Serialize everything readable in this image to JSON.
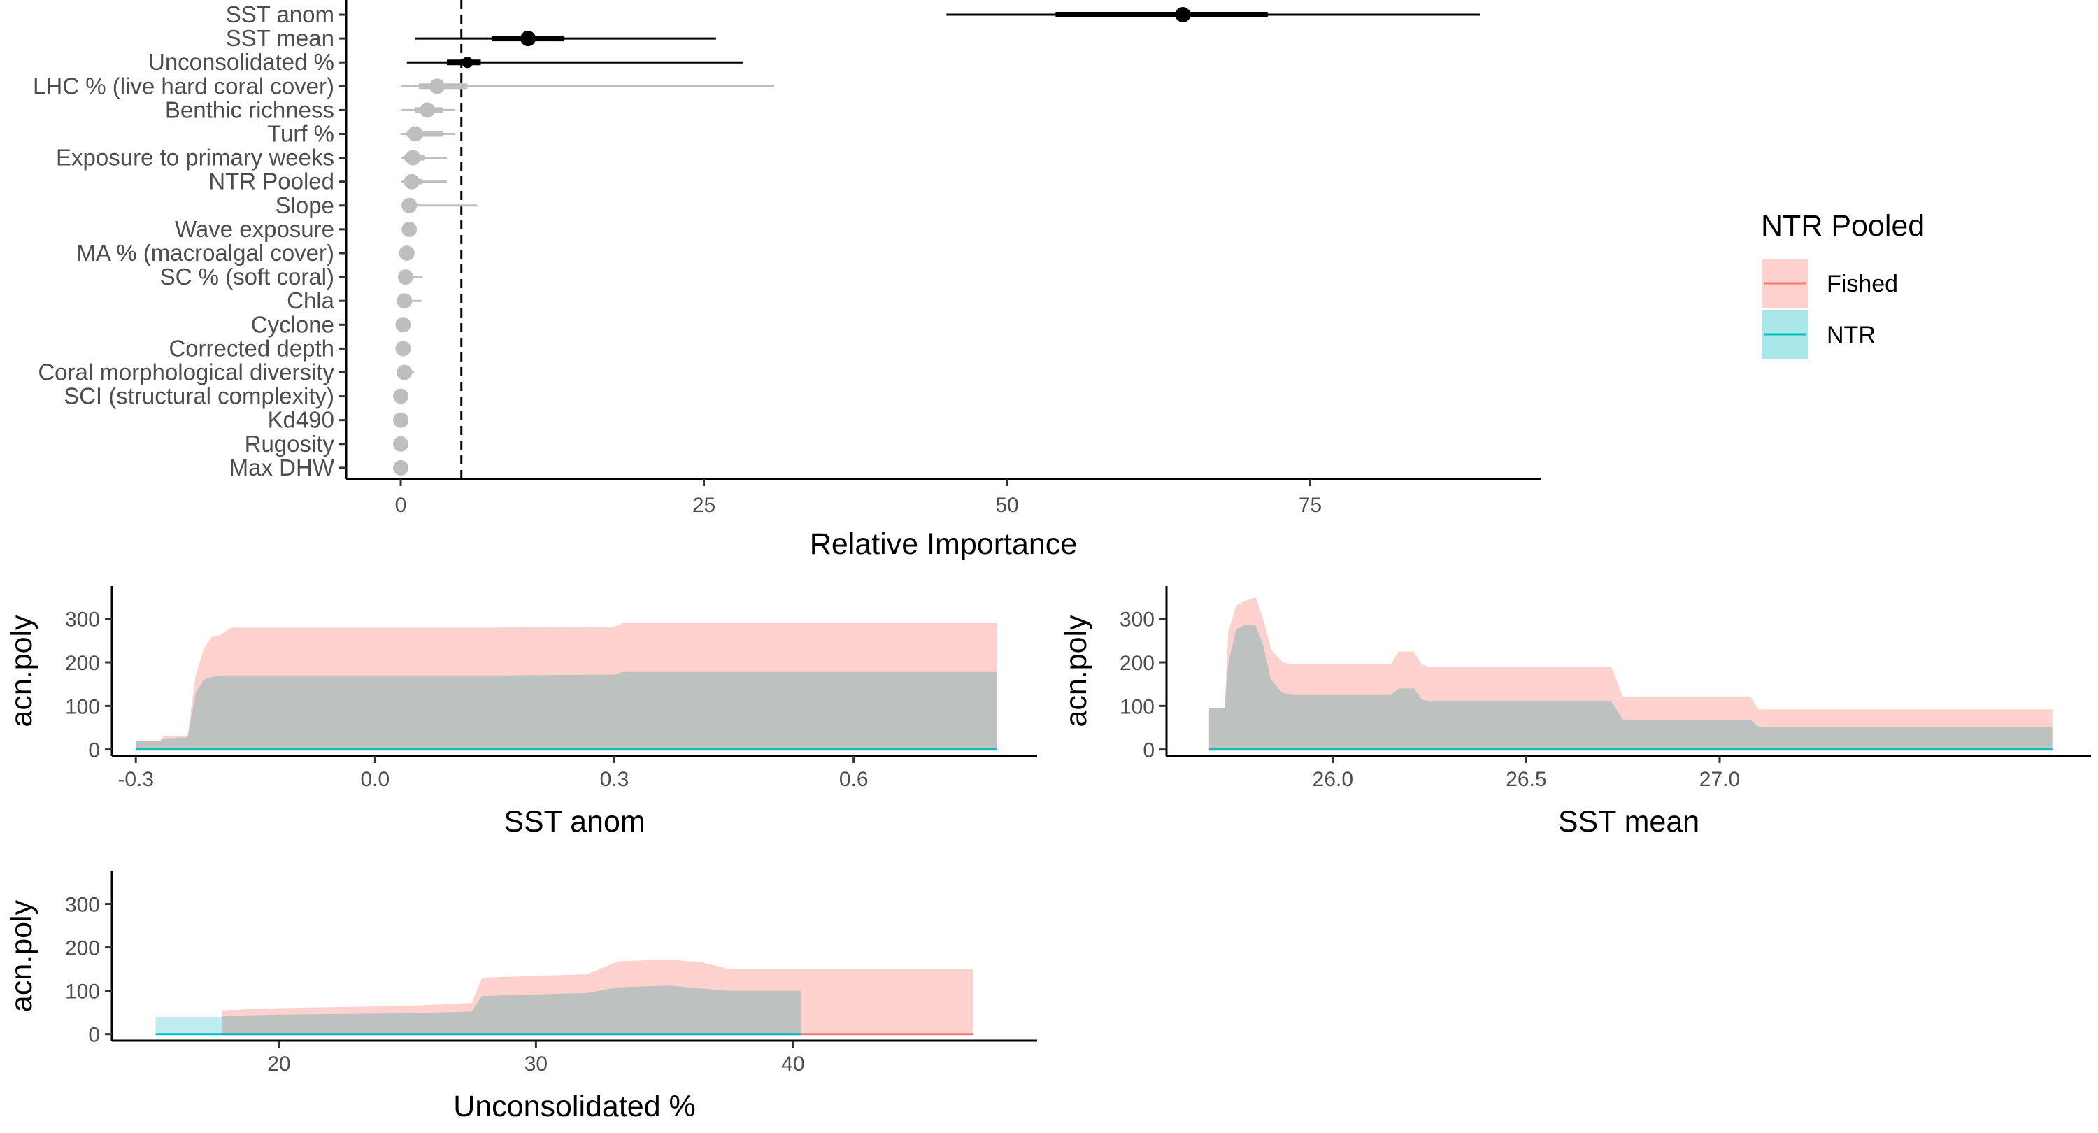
{
  "chart_data": [
    {
      "type": "dot-interval",
      "xlabel": "Relative Importance",
      "xticks": [
        0,
        25,
        50,
        75
      ],
      "xlim": [
        -4.5,
        94
      ],
      "reference_line": 5,
      "highlight_color": "#000000",
      "muted_color": "#bebebe",
      "variables": [
        {
          "name": "SST anom",
          "value": 64.5,
          "lo": 45,
          "hi": 89,
          "lo_inner": 54,
          "hi_inner": 71.5,
          "highlight": true
        },
        {
          "name": "SST mean",
          "value": 10.5,
          "lo": 1.2,
          "hi": 26,
          "lo_inner": 7.5,
          "hi_inner": 13.5,
          "highlight": true
        },
        {
          "name": "Unconsolidated %",
          "value": 5.5,
          "lo": 0.5,
          "hi": 28.2,
          "lo_inner": 3.8,
          "hi_inner": 6.6,
          "highlight": true
        },
        {
          "name": "LHC % (live hard coral cover)",
          "value": 3,
          "lo": 0,
          "hi": 30.8,
          "lo_inner": 1.5,
          "hi_inner": 5.5,
          "highlight": false
        },
        {
          "name": "Benthic richness",
          "value": 2.2,
          "lo": 0,
          "hi": 4.5,
          "lo_inner": 1.2,
          "hi_inner": 3.5,
          "highlight": false
        },
        {
          "name": "Turf %",
          "value": 1.2,
          "lo": 0,
          "hi": 4.5,
          "lo_inner": 0.5,
          "hi_inner": 3.5,
          "highlight": false
        },
        {
          "name": "Exposure to primary weeks",
          "value": 1,
          "lo": 0,
          "hi": 3.8,
          "lo_inner": 0.3,
          "hi_inner": 2,
          "highlight": false
        },
        {
          "name": "NTR Pooled",
          "value": 0.9,
          "lo": 0,
          "hi": 3.8,
          "lo_inner": 0.3,
          "hi_inner": 1.8,
          "highlight": false
        },
        {
          "name": "Slope",
          "value": 0.7,
          "lo": 0,
          "hi": 6.3,
          "lo_inner": 0.2,
          "hi_inner": 1.2,
          "highlight": false
        },
        {
          "name": "Wave exposure",
          "value": 0.7,
          "lo": 0.3,
          "hi": 1.2,
          "lo_inner": 0.4,
          "hi_inner": 1,
          "highlight": false
        },
        {
          "name": "MA % (macroalgal cover)",
          "value": 0.5,
          "lo": 0,
          "hi": 1,
          "lo_inner": 0.1,
          "hi_inner": 0.8,
          "highlight": false
        },
        {
          "name": "SC % (soft coral)",
          "value": 0.4,
          "lo": 0,
          "hi": 1.8,
          "lo_inner": 0.1,
          "hi_inner": 1,
          "highlight": false
        },
        {
          "name": "Chla",
          "value": 0.3,
          "lo": 0,
          "hi": 1.7,
          "lo_inner": 0.1,
          "hi_inner": 0.9,
          "highlight": false
        },
        {
          "name": "Cyclone",
          "value": 0.2,
          "lo": 0,
          "hi": 0.5,
          "lo_inner": 0,
          "hi_inner": 0.4,
          "highlight": false
        },
        {
          "name": "Corrected depth",
          "value": 0.2,
          "lo": 0,
          "hi": 0.7,
          "lo_inner": 0,
          "hi_inner": 0.5,
          "highlight": false
        },
        {
          "name": "Coral morphological diversity",
          "value": 0.3,
          "lo": 0,
          "hi": 1.1,
          "lo_inner": 0.1,
          "hi_inner": 0.7,
          "highlight": false
        },
        {
          "name": "SCI (structural complexity)",
          "value": 0,
          "lo": 0,
          "hi": 0.2,
          "lo_inner": 0,
          "hi_inner": 0.1,
          "highlight": false
        },
        {
          "name": "Kd490",
          "value": 0,
          "lo": 0,
          "hi": 0.2,
          "lo_inner": 0,
          "hi_inner": 0.1,
          "highlight": false
        },
        {
          "name": "Rugosity",
          "value": 0,
          "lo": 0,
          "hi": 0.2,
          "lo_inner": 0,
          "hi_inner": 0.1,
          "highlight": false
        },
        {
          "name": "Max DHW",
          "value": 0,
          "lo": 0,
          "hi": 0.2,
          "lo_inner": 0,
          "hi_inner": 0.1,
          "highlight": false
        }
      ]
    },
    {
      "type": "area",
      "xlabel": "SST anom",
      "ylabel": "acn.poly",
      "xticks": [
        -0.3,
        0.0,
        0.3,
        0.6
      ],
      "xtick_labels": [
        "-0.3",
        "0.0",
        "0.3",
        "0.6"
      ],
      "yticks": [
        0,
        100,
        200,
        300
      ],
      "xlim": [
        -0.33,
        0.83
      ],
      "ylim": [
        -15,
        375
      ],
      "series": [
        {
          "name": "Fished",
          "x": [
            -0.3,
            -0.27,
            -0.265,
            -0.235,
            -0.225,
            -0.215,
            -0.205,
            -0.195,
            -0.18,
            0.15,
            0.3,
            0.31,
            0.78
          ],
          "y": [
            20,
            20,
            30,
            32,
            170,
            230,
            258,
            262,
            280,
            280,
            282,
            290,
            290
          ]
        },
        {
          "name": "NTR",
          "x": [
            -0.3,
            -0.27,
            -0.265,
            -0.235,
            -0.225,
            -0.215,
            -0.205,
            -0.195,
            -0.18,
            0.15,
            0.3,
            0.31,
            0.78
          ],
          "y": [
            20,
            20,
            25,
            28,
            130,
            160,
            166,
            170,
            170,
            170,
            172,
            178,
            178
          ]
        }
      ]
    },
    {
      "type": "area",
      "xlabel": "SST mean",
      "ylabel": "acn.poly",
      "xticks": [
        26.0,
        26.5,
        27.0
      ],
      "xtick_labels": [
        "26.0",
        "26.5",
        "27.0"
      ],
      "yticks": [
        0,
        100,
        200,
        300
      ],
      "xlim": [
        25.57,
        27.96
      ],
      "ylim": [
        -15,
        375
      ],
      "series": [
        {
          "name": "Fished",
          "x": [
            25.68,
            25.72,
            25.73,
            25.75,
            25.77,
            25.8,
            25.82,
            25.84,
            25.87,
            25.9,
            25.94,
            26.15,
            26.17,
            26.21,
            26.23,
            26.25,
            26.72,
            26.75,
            27.08,
            27.1,
            27.86
          ],
          "y": [
            95,
            95,
            270,
            330,
            340,
            350,
            300,
            230,
            200,
            195,
            195,
            195,
            225,
            225,
            195,
            190,
            190,
            120,
            120,
            92,
            92
          ]
        },
        {
          "name": "NTR",
          "x": [
            25.68,
            25.72,
            25.73,
            25.75,
            25.77,
            25.8,
            25.82,
            25.84,
            25.87,
            25.9,
            25.94,
            26.15,
            26.17,
            26.21,
            26.23,
            26.25,
            26.72,
            26.75,
            27.08,
            27.1,
            27.86
          ],
          "y": [
            95,
            95,
            200,
            275,
            285,
            285,
            240,
            160,
            130,
            125,
            125,
            125,
            140,
            140,
            115,
            110,
            110,
            68,
            68,
            52,
            52
          ]
        }
      ]
    },
    {
      "type": "area",
      "xlabel": "Unconsolidated %",
      "ylabel": "acn.poly",
      "xticks": [
        20,
        30,
        40
      ],
      "xtick_labels": [
        "20",
        "30",
        "40"
      ],
      "yticks": [
        0,
        100,
        200,
        300
      ],
      "xlim": [
        13.5,
        49.5
      ],
      "ylim": [
        -15,
        375
      ],
      "series": [
        {
          "name": "Fished",
          "x": [
            17.8,
            20,
            25,
            27.5,
            27.9,
            32,
            33.2,
            35.2,
            36.5,
            37.5,
            40.3,
            47
          ],
          "y": [
            55,
            60,
            65,
            72,
            130,
            138,
            168,
            172,
            165,
            150,
            150,
            150
          ]
        },
        {
          "name": "NTR",
          "x": [
            15.2,
            17.8,
            17.81,
            20,
            25,
            27.5,
            27.9,
            32,
            33.2,
            35.2,
            36.5,
            37.5,
            40.3
          ],
          "y": [
            40,
            40,
            42,
            45,
            48,
            52,
            88,
            95,
            108,
            112,
            105,
            100,
            100
          ]
        }
      ]
    }
  ],
  "legend": {
    "title": "NTR Pooled",
    "items": [
      {
        "label": "Fished",
        "line_color": "#f8766d",
        "fill_color": "#fdd1cd"
      },
      {
        "label": "NTR",
        "line_color": "#00bfc4",
        "fill_color": "#a9e7ea"
      }
    ]
  }
}
